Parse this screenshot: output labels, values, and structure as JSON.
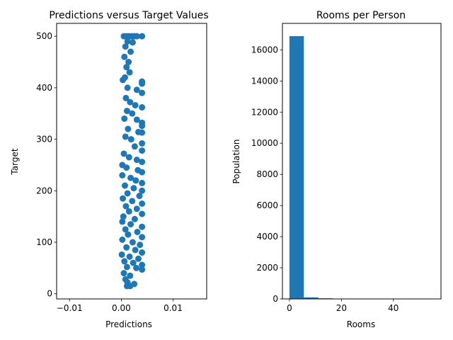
{
  "colors": {
    "series": "#1f77b4",
    "axis": "#000000",
    "background": "#ffffff"
  },
  "chart_data": [
    {
      "type": "scatter",
      "title": "Predictions versus Target Values",
      "xlabel": "Predictions",
      "ylabel": "Target",
      "xlim": [
        -0.0125,
        0.0165
      ],
      "ylim": [
        -10,
        525
      ],
      "xticks": [
        -0.01,
        0.0,
        0.01
      ],
      "xtick_labels": [
        "−0.01",
        "0.00",
        "0.01"
      ],
      "yticks": [
        0,
        100,
        200,
        300,
        400,
        500
      ],
      "ytick_labels": [
        "0",
        "100",
        "200",
        "300",
        "400",
        "500"
      ],
      "grid": false,
      "points": [
        {
          "x": 0.0005,
          "y": 500
        },
        {
          "x": 0.001,
          "y": 500
        },
        {
          "x": 0.0015,
          "y": 500
        },
        {
          "x": 0.002,
          "y": 500
        },
        {
          "x": 0.0025,
          "y": 500
        },
        {
          "x": 0.003,
          "y": 500
        },
        {
          "x": 0.004,
          "y": 500
        },
        {
          "x": 0.0012,
          "y": 490
        },
        {
          "x": 0.0022,
          "y": 488
        },
        {
          "x": 0.0008,
          "y": 480
        },
        {
          "x": 0.0018,
          "y": 470
        },
        {
          "x": 0.0006,
          "y": 460
        },
        {
          "x": 0.0014,
          "y": 450
        },
        {
          "x": 0.001,
          "y": 440
        },
        {
          "x": 0.0016,
          "y": 430
        },
        {
          "x": 0.0007,
          "y": 420
        },
        {
          "x": 0.0003,
          "y": 415
        },
        {
          "x": 0.004,
          "y": 412
        },
        {
          "x": 0.004,
          "y": 408
        },
        {
          "x": 0.0012,
          "y": 400
        },
        {
          "x": 0.003,
          "y": 396
        },
        {
          "x": 0.004,
          "y": 390
        },
        {
          "x": 0.0009,
          "y": 380
        },
        {
          "x": 0.0017,
          "y": 372
        },
        {
          "x": 0.0027,
          "y": 366
        },
        {
          "x": 0.004,
          "y": 362
        },
        {
          "x": 0.0011,
          "y": 355
        },
        {
          "x": 0.0021,
          "y": 350
        },
        {
          "x": 0.0006,
          "y": 340
        },
        {
          "x": 0.003,
          "y": 338
        },
        {
          "x": 0.004,
          "y": 332
        },
        {
          "x": 0.004,
          "y": 326
        },
        {
          "x": 0.0013,
          "y": 320
        },
        {
          "x": 0.0033,
          "y": 314
        },
        {
          "x": 0.004,
          "y": 313
        },
        {
          "x": 0.0008,
          "y": 305
        },
        {
          "x": 0.0019,
          "y": 300
        },
        {
          "x": 0.004,
          "y": 292
        },
        {
          "x": 0.0026,
          "y": 286
        },
        {
          "x": 0.004,
          "y": 278
        },
        {
          "x": 0.0005,
          "y": 272
        },
        {
          "x": 0.0015,
          "y": 265
        },
        {
          "x": 0.003,
          "y": 260
        },
        {
          "x": 0.004,
          "y": 256
        },
        {
          "x": 0.0002,
          "y": 250
        },
        {
          "x": 0.001,
          "y": 245
        },
        {
          "x": 0.0032,
          "y": 240
        },
        {
          "x": 0.004,
          "y": 236
        },
        {
          "x": 0.0002,
          "y": 230
        },
        {
          "x": 0.0018,
          "y": 225
        },
        {
          "x": 0.0028,
          "y": 220
        },
        {
          "x": 0.004,
          "y": 215
        },
        {
          "x": 0.0007,
          "y": 210
        },
        {
          "x": 0.0024,
          "y": 205
        },
        {
          "x": 0.004,
          "y": 200
        },
        {
          "x": 0.0012,
          "y": 195
        },
        {
          "x": 0.0035,
          "y": 190
        },
        {
          "x": 0.0003,
          "y": 185
        },
        {
          "x": 0.0021,
          "y": 180
        },
        {
          "x": 0.004,
          "y": 175
        },
        {
          "x": 0.0009,
          "y": 170
        },
        {
          "x": 0.003,
          "y": 165
        },
        {
          "x": 0.0015,
          "y": 160
        },
        {
          "x": 0.004,
          "y": 155
        },
        {
          "x": 0.0004,
          "y": 150
        },
        {
          "x": 0.0026,
          "y": 145
        },
        {
          "x": 0.0002,
          "y": 140
        },
        {
          "x": 0.0018,
          "y": 135
        },
        {
          "x": 0.004,
          "y": 130
        },
        {
          "x": 0.0008,
          "y": 125
        },
        {
          "x": 0.0031,
          "y": 120
        },
        {
          "x": 0.0013,
          "y": 115
        },
        {
          "x": 0.004,
          "y": 110
        },
        {
          "x": 0.0002,
          "y": 105
        },
        {
          "x": 0.0022,
          "y": 100
        },
        {
          "x": 0.0036,
          "y": 95
        },
        {
          "x": 0.001,
          "y": 90
        },
        {
          "x": 0.0027,
          "y": 85
        },
        {
          "x": 0.004,
          "y": 80
        },
        {
          "x": 0.0001,
          "y": 76
        },
        {
          "x": 0.0016,
          "y": 72
        },
        {
          "x": 0.0033,
          "y": 68
        },
        {
          "x": 0.0006,
          "y": 63
        },
        {
          "x": 0.0023,
          "y": 60
        },
        {
          "x": 0.004,
          "y": 56
        },
        {
          "x": 0.0011,
          "y": 52
        },
        {
          "x": 0.0029,
          "y": 50
        },
        {
          "x": 0.004,
          "y": 47
        },
        {
          "x": 0.0005,
          "y": 40
        },
        {
          "x": 0.0017,
          "y": 35
        },
        {
          "x": 0.0008,
          "y": 28
        },
        {
          "x": 0.0012,
          "y": 22
        },
        {
          "x": 0.0025,
          "y": 19
        },
        {
          "x": 0.0011,
          "y": 15
        },
        {
          "x": 0.0017,
          "y": 15
        }
      ]
    },
    {
      "type": "bar",
      "title": "Rooms per Person",
      "xlabel": "Rooms",
      "ylabel": "Population",
      "xlim": [
        -2.7,
        58.3
      ],
      "ylim": [
        0,
        17700
      ],
      "xticks": [
        0,
        20,
        40
      ],
      "xtick_labels": [
        "0",
        "20",
        "40"
      ],
      "yticks": [
        0,
        2000,
        4000,
        6000,
        8000,
        10000,
        12000,
        14000,
        16000
      ],
      "ytick_labels": [
        "0",
        "2000",
        "4000",
        "6000",
        "8000",
        "10000",
        "12000",
        "14000",
        "16000"
      ],
      "grid": false,
      "bin_edges": [
        0.0,
        5.56,
        11.12,
        16.68,
        22.24,
        27.8,
        33.36,
        38.92,
        44.48,
        50.04,
        55.6
      ],
      "values": [
        16880,
        100,
        40,
        10,
        2,
        1,
        1,
        0,
        0,
        1
      ]
    }
  ]
}
